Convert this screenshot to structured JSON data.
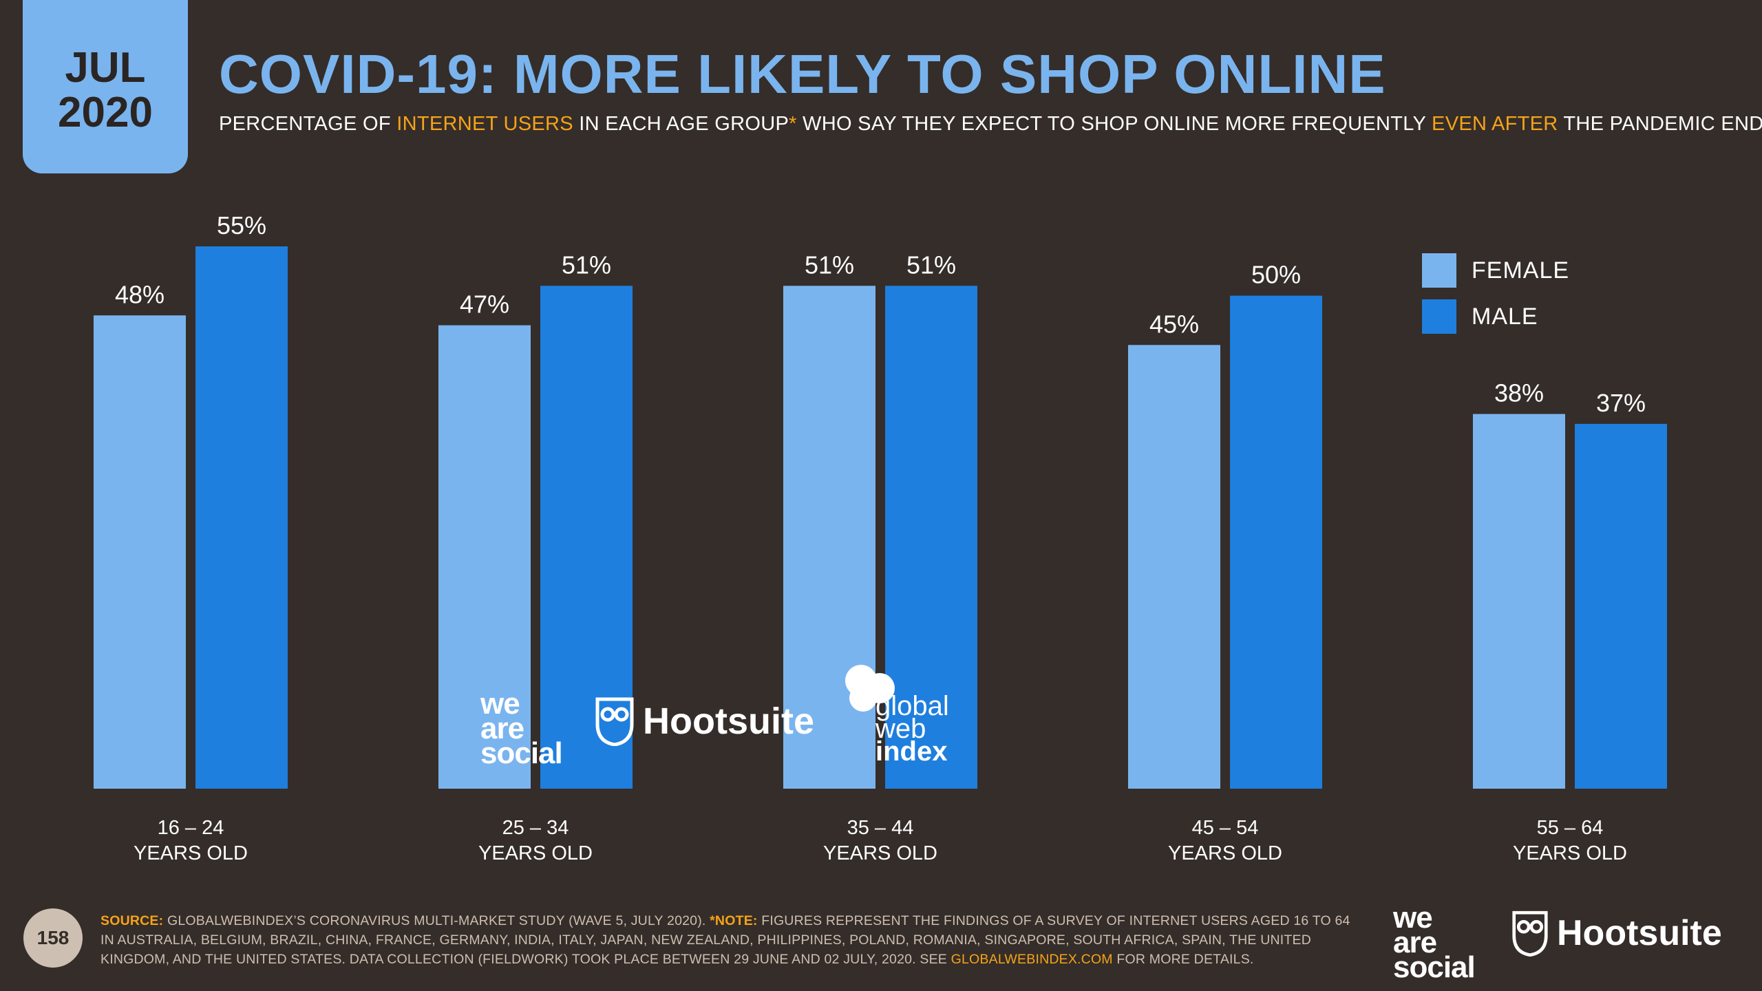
{
  "badge": {
    "month": "JUL",
    "year": "2020"
  },
  "header": {
    "title": "COVID-19: MORE LIKELY TO SHOP ONLINE",
    "subtitle_1": "PERCENTAGE OF ",
    "subtitle_hl_1": "INTERNET USERS",
    "subtitle_2": " IN EACH AGE GROUP",
    "subtitle_hl_2": "*",
    "subtitle_3": " WHO SAY THEY EXPECT TO SHOP ONLINE MORE FREQUENTLY ",
    "subtitle_hl_3": "EVEN AFTER",
    "subtitle_4": " THE PANDEMIC ENDS"
  },
  "colors": {
    "background": "#352d29",
    "female": "#7ab4ee",
    "male": "#1e7fde",
    "accent": "#f5a31a",
    "title": "#7ab4ee"
  },
  "chart_data": {
    "type": "bar",
    "categories": [
      [
        "16 – 24",
        "YEARS OLD"
      ],
      [
        "25 – 34",
        "YEARS OLD"
      ],
      [
        "35 – 44",
        "YEARS OLD"
      ],
      [
        "45 – 54",
        "YEARS OLD"
      ],
      [
        "55 – 64",
        "YEARS OLD"
      ]
    ],
    "series": [
      {
        "name": "FEMALE",
        "values": [
          48,
          47,
          51,
          45,
          38
        ],
        "labels": [
          "48%",
          "47%",
          "51%",
          "45%",
          "38%"
        ]
      },
      {
        "name": "MALE",
        "values": [
          55,
          51,
          51,
          50,
          37
        ],
        "labels": [
          "55%",
          "51%",
          "51%",
          "50%",
          "37%"
        ]
      }
    ],
    "ylim": [
      0,
      55
    ],
    "grid": false,
    "legend_position": "top-right"
  },
  "legend": {
    "female": "FEMALE",
    "male": "MALE"
  },
  "watermark_logos": {
    "we_are_social": [
      "we",
      "are",
      "social"
    ],
    "hootsuite": "Hootsuite",
    "gwi": [
      "global",
      "web",
      "index"
    ]
  },
  "footer": {
    "page_number": "158",
    "source_key": "SOURCE:",
    "source_text": " GLOBALWEBINDEX’S CORONAVIRUS MULTI-MARKET STUDY (WAVE 5, JULY 2020). ",
    "note_key": "*NOTE:",
    "note_text": " FIGURES REPRESENT THE FINDINGS OF A SURVEY OF INTERNET USERS AGED 16 TO 64 IN AUSTRALIA, BELGIUM, BRAZIL, CHINA, FRANCE, GERMANY, INDIA, ITALY, JAPAN, NEW ZEALAND, PHILIPPINES, POLAND, ROMANIA, SINGAPORE, SOUTH AFRICA, SPAIN, THE UNITED KINGDOM, AND THE UNITED STATES. DATA COLLECTION (FIELDWORK) TOOK PLACE BETWEEN 29 JUNE AND 02 JULY, 2020. SEE ",
    "link": "GLOBALWEBINDEX.COM",
    "note_end": " FOR MORE DETAILS.",
    "logo_was": [
      "we",
      "are",
      "social"
    ],
    "logo_hoot": "Hootsuite"
  }
}
